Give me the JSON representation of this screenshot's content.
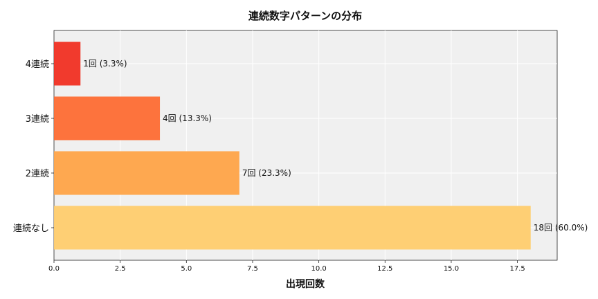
{
  "chart_data": {
    "type": "bar",
    "orientation": "horizontal",
    "title": "連続数字パターンの分布",
    "xlabel": "出現回数",
    "ylabel": "",
    "categories": [
      "連続なし",
      "2連続",
      "3連続",
      "4連続"
    ],
    "values": [
      18,
      7,
      4,
      1
    ],
    "data_labels": [
      "18回 (60.0%)",
      "7回 (23.3%)",
      "4回 (13.3%)",
      "1回 (3.3%)"
    ],
    "colors": [
      "#fecc6d",
      "#fea347",
      "#fd6b33",
      "#f02f22"
    ],
    "xlim": [
      0,
      19
    ],
    "xticks": [
      0,
      2.5,
      5,
      7.5,
      10,
      12.5,
      15,
      17.5
    ],
    "xtick_labels": [
      "0.0",
      "2.5",
      "5.0",
      "7.5",
      "10.0",
      "12.5",
      "15.0",
      "17.5"
    ],
    "grid": true,
    "plot_background": "#f0f0f0"
  }
}
